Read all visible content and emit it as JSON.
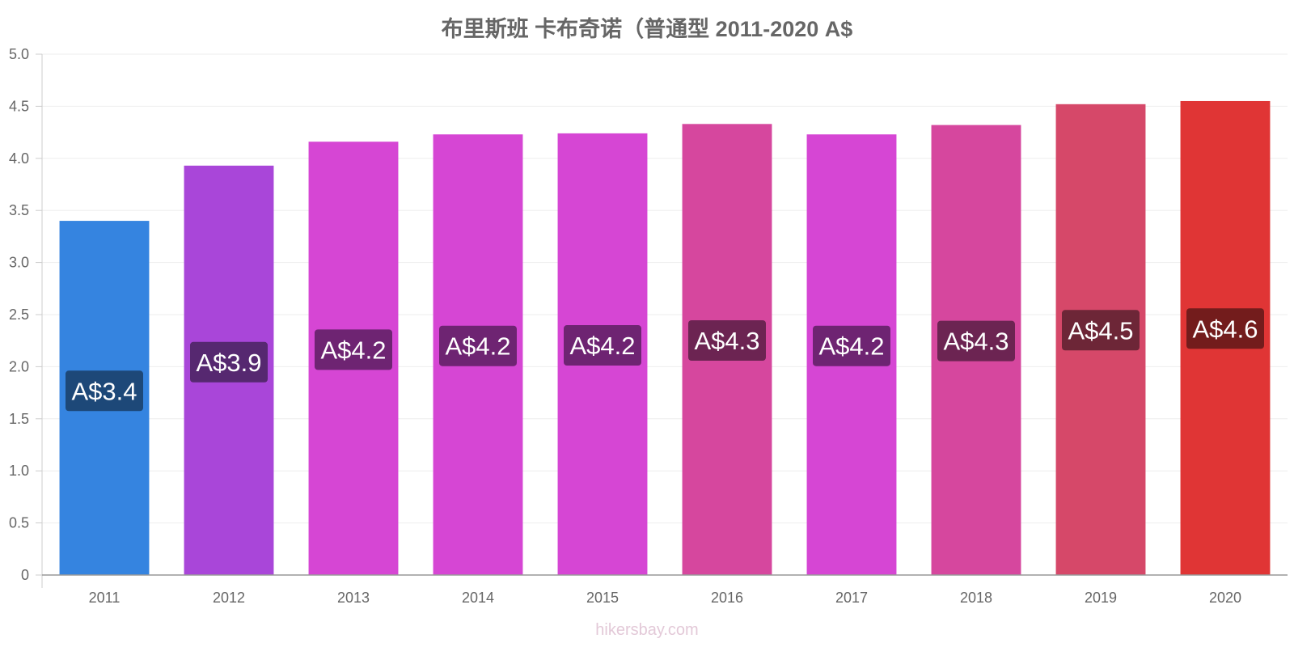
{
  "chart_data": {
    "type": "bar",
    "title": "布里斯班 卡布奇诺（普通型 2011-2020 A$",
    "xlabel": "",
    "ylabel": "",
    "categories": [
      "2011",
      "2012",
      "2013",
      "2014",
      "2015",
      "2016",
      "2017",
      "2018",
      "2019",
      "2020"
    ],
    "values": [
      3.4,
      3.93,
      4.16,
      4.23,
      4.24,
      4.33,
      4.23,
      4.32,
      4.52,
      4.55
    ],
    "data_labels": [
      "A$3.4",
      "A$3.9",
      "A$4.2",
      "A$4.2",
      "A$4.2",
      "A$4.3",
      "A$4.2",
      "A$4.3",
      "A$4.5",
      "A$4.6"
    ],
    "bar_colors": [
      "#3584e0",
      "#a946d9",
      "#d646d4",
      "#d646d4",
      "#d646d4",
      "#d6479e",
      "#d646d4",
      "#d6479e",
      "#d64869",
      "#e03535"
    ],
    "label_bg_colors": [
      "#1d4878",
      "#562870",
      "#6e2472",
      "#6e2472",
      "#6e2472",
      "#6c2452",
      "#6e2472",
      "#6c2452",
      "#6d2637",
      "#731c1c"
    ],
    "ylim": [
      0,
      5.0
    ],
    "yticks": [
      0,
      0.5,
      1.0,
      1.5,
      2.0,
      2.5,
      3.0,
      3.5,
      4.0,
      4.5,
      5.0
    ],
    "ytick_labels": [
      "0",
      "0.5",
      "1.0",
      "1.5",
      "2.0",
      "2.5",
      "3.0",
      "3.5",
      "4.0",
      "4.5",
      "5.0"
    ],
    "grid": true,
    "legend": "none"
  },
  "watermark": "hikersbay.com"
}
